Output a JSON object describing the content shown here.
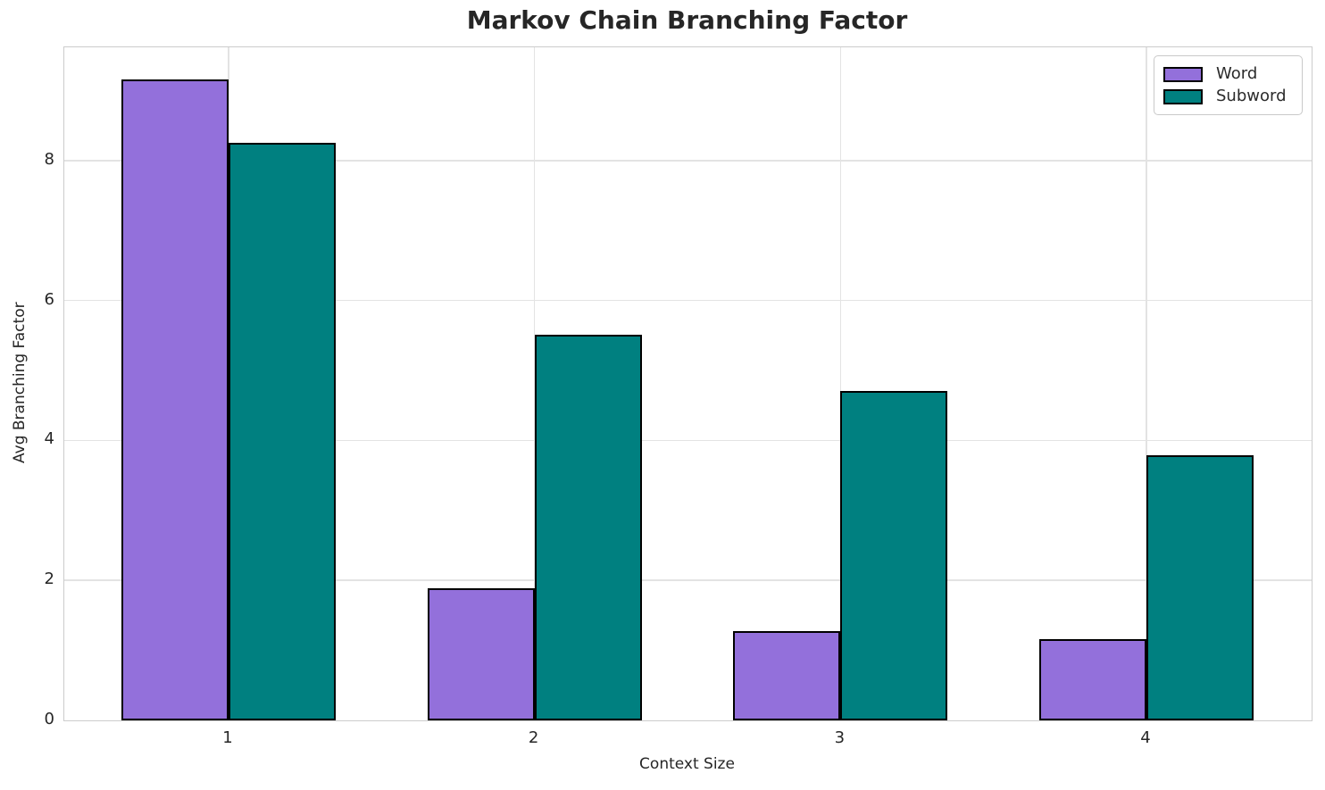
{
  "chart_data": {
    "type": "bar",
    "title": "Markov Chain Branching Factor",
    "xlabel": "Context Size",
    "ylabel": "Avg Branching Factor",
    "categories": [
      "1",
      "2",
      "3",
      "4"
    ],
    "series": [
      {
        "name": "Word",
        "color": "#9370DB",
        "values": [
          9.16,
          1.89,
          1.27,
          1.16
        ]
      },
      {
        "name": "Subword",
        "color": "#008080",
        "values": [
          8.25,
          5.51,
          4.71,
          3.79
        ]
      }
    ],
    "ylim": [
      0,
      9.62
    ],
    "yticks": [
      0,
      2,
      4,
      6,
      8
    ],
    "grid": true,
    "legend_position": "upper right",
    "edge_color": "#000000",
    "colors": {
      "text": "#262626",
      "grid": "#e3e3e3",
      "spine": "#cccccc",
      "background": "#ffffff"
    }
  }
}
